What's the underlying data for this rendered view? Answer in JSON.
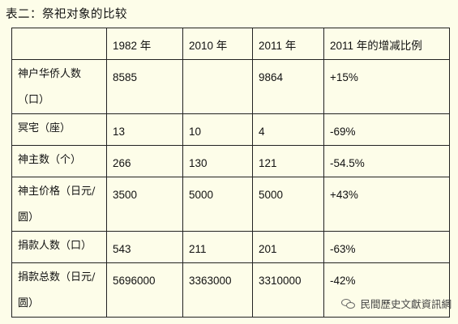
{
  "caption": "表二：祭祀对象的比较",
  "table": {
    "header": [
      "",
      "1982 年",
      "2010 年",
      "2011 年",
      "2011 年的增减比例"
    ],
    "rows": [
      {
        "label": "神户华侨人数（口）",
        "values": [
          "8585",
          "",
          "9864",
          "+15%"
        ]
      },
      {
        "label": "冥宅（座）",
        "values": [
          "13",
          "10",
          "4",
          "-69%"
        ]
      },
      {
        "label": "神主数（个）",
        "values": [
          "266",
          "130",
          "121",
          "-54.5%"
        ]
      },
      {
        "label": "神主价格（日元/圆）",
        "values": [
          "3500",
          "5000",
          "5000",
          "+43%"
        ]
      },
      {
        "label": "捐款人数（口）",
        "values": [
          "543",
          "211",
          "201",
          "-63%"
        ]
      },
      {
        "label": "捐款总数（日元/圆）",
        "values": [
          "5696000",
          "3363000",
          "3310000",
          "-42%"
        ]
      }
    ]
  },
  "watermark": {
    "text": "民間歷史文獻資訊網",
    "icon": "wechat-icon"
  }
}
